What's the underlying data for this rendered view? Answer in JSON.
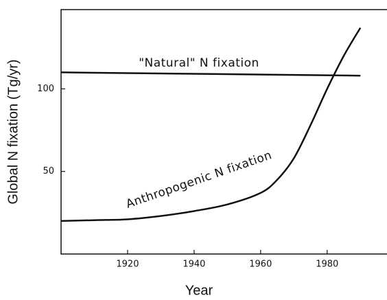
{
  "chart_data": {
    "type": "line",
    "xlabel": "Year",
    "ylabel": "Global N fixation (Tg/yr)",
    "xlim": [
      1900,
      1998
    ],
    "ylim": [
      0,
      148
    ],
    "xticks": [
      1920,
      1940,
      1960,
      1980
    ],
    "yticks": [
      50,
      100
    ],
    "series": [
      {
        "name": "\"Natural\"  N fixation",
        "color": "#111111",
        "x": [
          1900,
          1990
        ],
        "values": [
          110,
          108
        ]
      },
      {
        "name": "Anthropogenic  N fixation",
        "color": "#111111",
        "x": [
          1900,
          1910,
          1920,
          1930,
          1940,
          1950,
          1960,
          1965,
          1970,
          1975,
          1980,
          1985,
          1990
        ],
        "values": [
          20,
          20.5,
          21,
          23,
          26,
          30,
          37,
          45,
          58,
          78,
          100,
          120,
          137
        ]
      }
    ]
  }
}
